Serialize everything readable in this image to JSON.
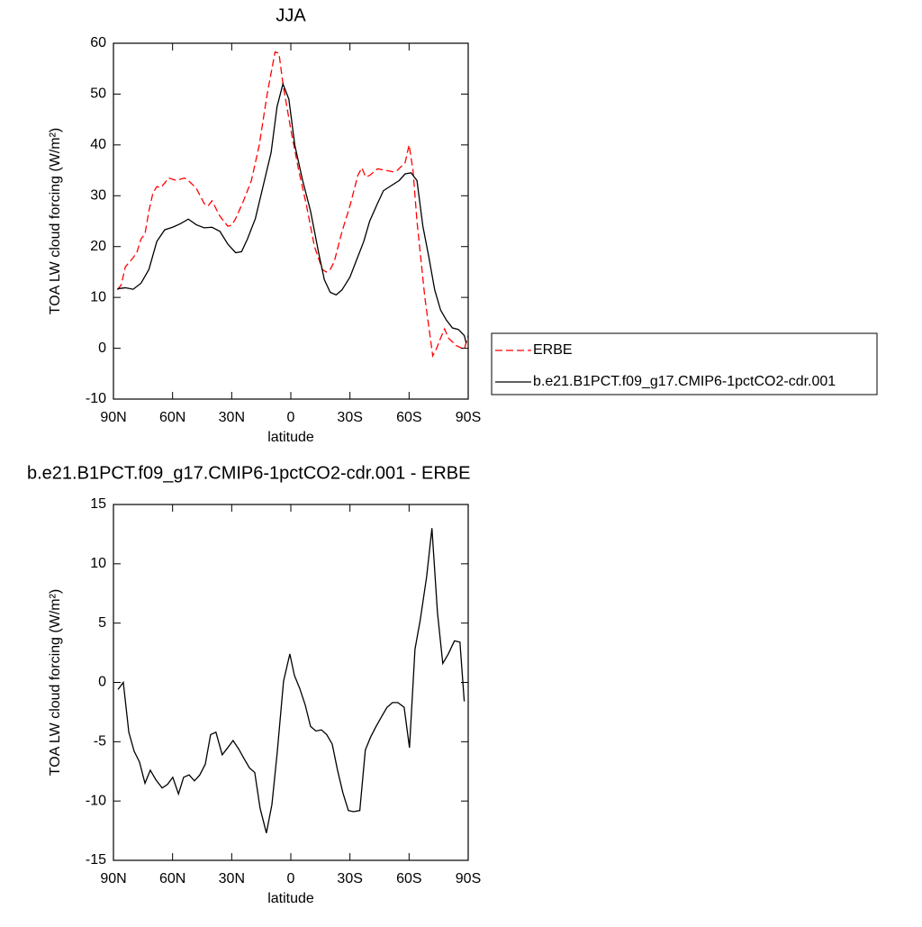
{
  "chart_data": [
    {
      "type": "line",
      "title": "JJA",
      "xlabel": "latitude",
      "ylabel": "TOA LW cloud forcing (W/m²)",
      "xlim": [
        90,
        -90
      ],
      "xticks": [
        {
          "value": 90,
          "label": "90N"
        },
        {
          "value": 60,
          "label": "60N"
        },
        {
          "value": 30,
          "label": "30N"
        },
        0,
        {
          "value": -30,
          "label": "30S"
        },
        {
          "value": -60,
          "label": "60S"
        },
        {
          "value": -90,
          "label": "90S"
        }
      ],
      "ylim": [
        -10,
        60
      ],
      "yticks": [
        -10,
        0,
        10,
        20,
        30,
        40,
        50,
        60
      ],
      "legend": "right",
      "series": [
        {
          "name": "ERBE",
          "color": "#ff0000",
          "style": "dashed",
          "x": [
            88,
            86,
            84,
            80,
            78,
            76,
            74,
            72,
            70,
            68,
            66,
            64,
            62,
            58,
            54,
            52,
            48,
            44,
            42,
            40,
            36,
            32,
            30,
            28,
            24,
            20,
            16,
            12,
            8,
            6,
            4,
            0,
            -4,
            -8,
            -12,
            -16,
            -18,
            -20,
            -22,
            -26,
            -30,
            -34,
            -36,
            -38,
            -40,
            -44,
            -48,
            -52,
            -54,
            -58,
            -60,
            -62,
            -64,
            -68,
            -72,
            -74,
            -76,
            -78,
            -80,
            -84,
            -88,
            -90
          ],
          "values": [
            11.5,
            12.5,
            16,
            17.8,
            19,
            21.5,
            22.5,
            27,
            30.5,
            31.8,
            31.6,
            32.5,
            33.5,
            33,
            33.5,
            33,
            31.5,
            28.5,
            28,
            29,
            26,
            24,
            24.2,
            25.5,
            29,
            33,
            40,
            50,
            58.3,
            58,
            52,
            43,
            35,
            28,
            20,
            15.5,
            15,
            15.5,
            17,
            23,
            28,
            34,
            35.5,
            33.7,
            34,
            35.3,
            35,
            34.7,
            35,
            36.5,
            40,
            35,
            25,
            10,
            -1.5,
            0,
            2,
            3.8,
            2,
            0.5,
            -0.2,
            2.5
          ]
        },
        {
          "name": "b.e21.B1PCT.f09_g17.CMIP6-1pctCO2-cdr.001",
          "color": "#000000",
          "style": "solid",
          "x": [
            88,
            84,
            80,
            76,
            72,
            68,
            64,
            60,
            56,
            52,
            48,
            44,
            40,
            36,
            32,
            28,
            25,
            22,
            18,
            14,
            10,
            7,
            4,
            1,
            -2,
            -6,
            -10,
            -14,
            -17,
            -20,
            -23,
            -26,
            -30,
            -33,
            -37,
            -40,
            -44,
            -47,
            -51,
            -55,
            -58,
            -61,
            -64,
            -67,
            -70,
            -73,
            -76,
            -79,
            -82,
            -85,
            -88,
            -89
          ],
          "values": [
            11.7,
            11.9,
            11.6,
            12.8,
            15.5,
            21,
            23.3,
            23.8,
            24.5,
            25.4,
            24.3,
            23.7,
            23.8,
            23,
            20.5,
            18.8,
            19,
            21.5,
            25.5,
            32,
            38.5,
            47.5,
            52,
            49,
            40,
            33,
            27,
            19,
            13.5,
            11,
            10.5,
            11.5,
            14,
            17,
            21,
            25,
            28.5,
            31,
            32,
            33,
            34.3,
            34.5,
            33,
            24,
            18,
            11.5,
            7.5,
            5.5,
            4,
            3.7,
            2.5,
            1
          ]
        }
      ]
    },
    {
      "type": "line",
      "title": "b.e21.B1PCT.f09_g17.CMIP6-1pctCO2-cdr.001 - ERBE",
      "xlabel": "latitude",
      "ylabel": "TOA LW cloud forcing (W/m²)",
      "xlim": [
        90,
        -90
      ],
      "xticks": [
        {
          "value": 90,
          "label": "90N"
        },
        {
          "value": 60,
          "label": "60N"
        },
        {
          "value": 30,
          "label": "30N"
        },
        0,
        {
          "value": -30,
          "label": "30S"
        },
        {
          "value": -60,
          "label": "60S"
        },
        {
          "value": -90,
          "label": "90S"
        }
      ],
      "ylim": [
        -15,
        15
      ],
      "yticks": [
        -15,
        -10,
        -5,
        0,
        5,
        10,
        15
      ],
      "series": [
        {
          "color": "#000000",
          "style": "solid",
          "x": [
            87.7,
            85,
            82.2,
            79.5,
            76.8,
            74,
            71.3,
            68.5,
            65.3,
            62.6,
            59.9,
            57,
            54.4,
            51.6,
            48.9,
            46.2,
            43.4,
            40.7,
            38,
            34.8,
            32,
            29.3,
            26.5,
            23.8,
            21,
            18.3,
            15.6,
            12.4,
            9.6,
            6.9,
            3.7,
            0.5,
            -1.8,
            -4.5,
            -7.3,
            -10,
            -12.7,
            -15.5,
            -18.2,
            -21,
            -23.7,
            -26.4,
            -29.2,
            -31.9,
            -35,
            -37.8,
            -40.5,
            -43.3,
            -46,
            -48.8,
            -51.6,
            -54.3,
            -57.5,
            -60.2,
            -63,
            -65.7,
            -68.9,
            -71.6,
            -74.4,
            -77.1,
            -79.9,
            -83,
            -85.8,
            -88
          ],
          "values": [
            -0.6,
            0,
            -4.2,
            -5.8,
            -6.7,
            -8.5,
            -7.4,
            -8.2,
            -8.9,
            -8.6,
            -8,
            -9.4,
            -8,
            -7.8,
            -8.3,
            -7.8,
            -6.9,
            -4.4,
            -4.2,
            -6.1,
            -5.5,
            -4.9,
            -5.6,
            -6.4,
            -7.2,
            -7.6,
            -10.6,
            -12.7,
            -10.3,
            -5.9,
            0.1,
            2.4,
            0.6,
            -0.5,
            -1.9,
            -3.7,
            -4.1,
            -4,
            -4.4,
            -5.2,
            -7.4,
            -9.3,
            -10.8,
            -10.9,
            -10.8,
            -5.7,
            -4.6,
            -3.7,
            -2.9,
            -2.1,
            -1.7,
            -1.7,
            -2.1,
            -5.5,
            2.8,
            5.3,
            8.9,
            13,
            5.9,
            1.6,
            2.4,
            3.5,
            3.4,
            -1.6
          ]
        }
      ]
    }
  ]
}
